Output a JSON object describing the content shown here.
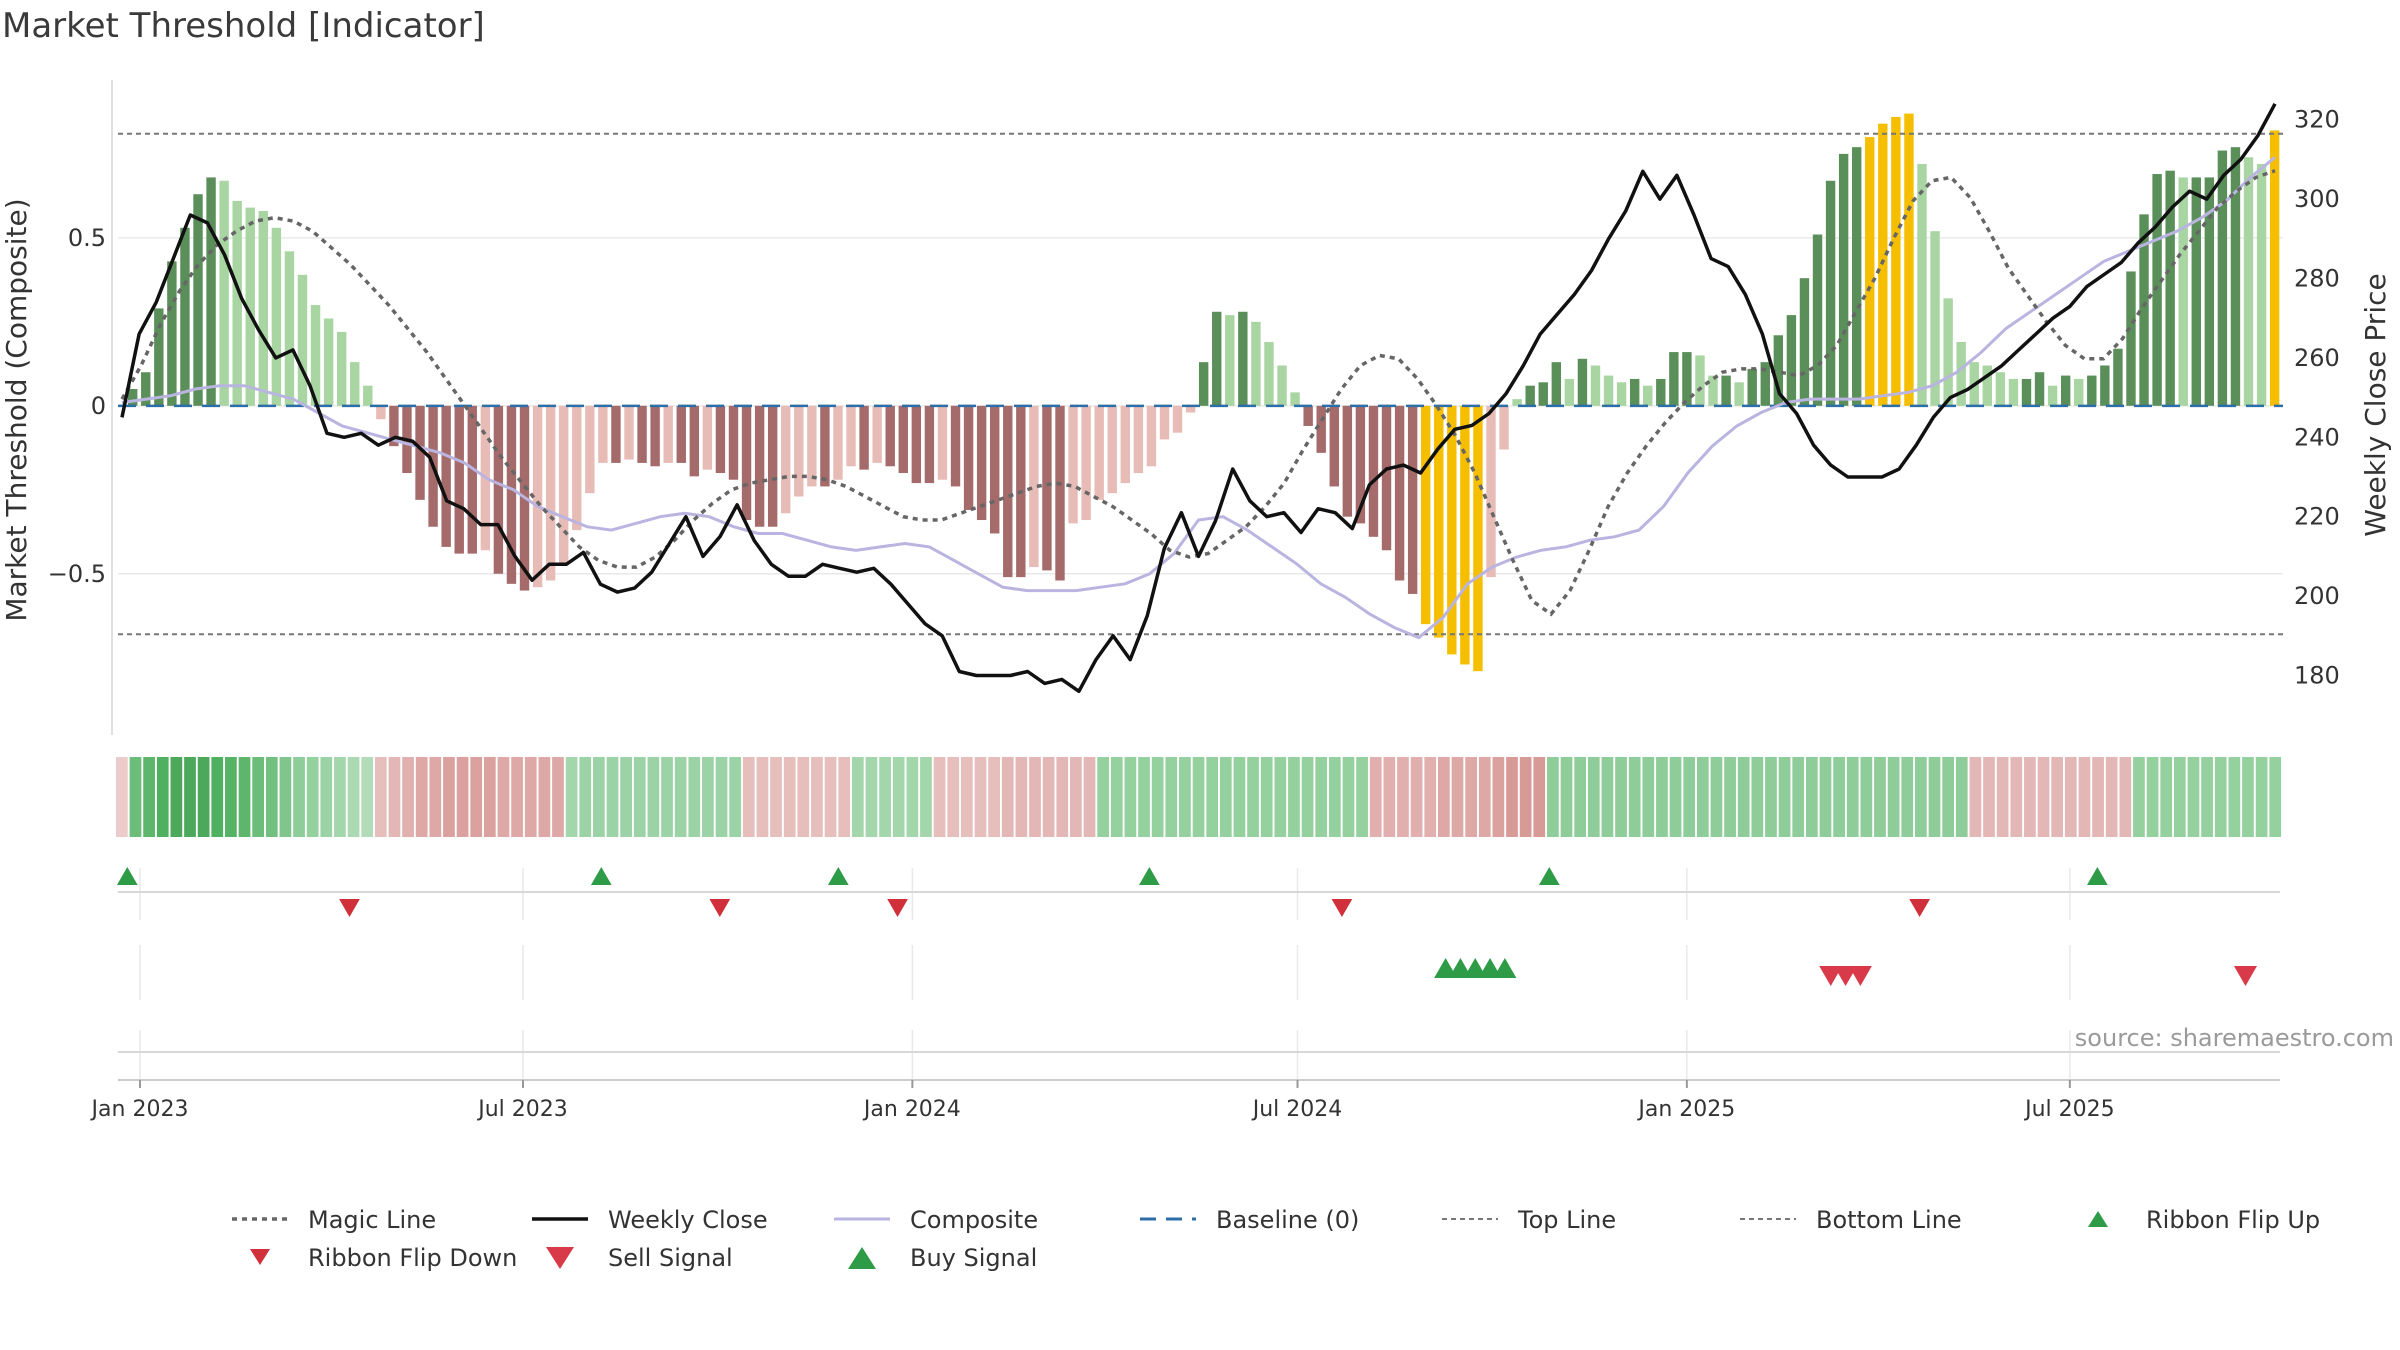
{
  "title": "Market Threshold [Indicator]",
  "source": "source: sharemaestro.com",
  "colors": {
    "bar_pos_strong": "#5a8f5a",
    "bar_pos_weak": "#a8d5a2",
    "bar_neg_strong": "#a56b6b",
    "bar_neg_weak": "#e8bcb6",
    "bar_extreme": "#f5bf00",
    "weekly_close": "#111111",
    "composite": "#b9b4e0",
    "magic_line": "#666666",
    "baseline": "#2c6fa8",
    "threshold_lines": "#777777",
    "buy": "#2e9b47",
    "sell": "#d93a49",
    "grid": "#e9e9e9"
  },
  "chart_data": {
    "type": "bar",
    "x_axis": {
      "start": "2023-01-01",
      "end": "2025-10-05",
      "ticks": [
        {
          "date": "2023-01-01",
          "label": "Jan 2023"
        },
        {
          "date": "2023-07-01",
          "label": "Jul 2023"
        },
        {
          "date": "2024-01-01",
          "label": "Jan 2024"
        },
        {
          "date": "2024-07-01",
          "label": "Jul 2024"
        },
        {
          "date": "2025-01-01",
          "label": "Jan 2025"
        },
        {
          "date": "2025-07-01",
          "label": "Jul 2025"
        }
      ]
    },
    "y_left": {
      "label": "Market Threshold (Composite)",
      "ticks": [
        {
          "value": 0.5,
          "label": "0.5"
        },
        {
          "value": 0,
          "label": "0"
        },
        {
          "value": -0.5,
          "label": "−0.5"
        }
      ],
      "range": [
        -0.98,
        0.97
      ]
    },
    "y_right": {
      "label": "Weekly Close Price",
      "ticks": [
        320,
        300,
        280,
        260,
        240,
        220,
        200,
        180
      ],
      "range": [
        165,
        330
      ]
    },
    "top_line": 0.81,
    "bottom_line": -0.68,
    "bars": [
      0.05,
      0.1,
      0.29,
      0.43,
      0.53,
      0.63,
      0.68,
      0.67,
      0.61,
      0.59,
      0.58,
      0.53,
      0.46,
      0.39,
      0.3,
      0.26,
      0.22,
      0.13,
      0.06,
      -0.04,
      -0.12,
      -0.2,
      -0.28,
      -0.36,
      -0.42,
      -0.44,
      -0.44,
      -0.43,
      -0.5,
      -0.53,
      -0.55,
      -0.54,
      -0.52,
      -0.47,
      -0.37,
      -0.26,
      -0.17,
      -0.17,
      -0.16,
      -0.17,
      -0.18,
      -0.17,
      -0.17,
      -0.21,
      -0.19,
      -0.2,
      -0.22,
      -0.34,
      -0.36,
      -0.36,
      -0.32,
      -0.27,
      -0.24,
      -0.24,
      -0.22,
      -0.18,
      -0.19,
      -0.17,
      -0.18,
      -0.2,
      -0.23,
      -0.23,
      -0.22,
      -0.24,
      -0.31,
      -0.34,
      -0.38,
      -0.51,
      -0.51,
      -0.48,
      -0.49,
      -0.52,
      -0.35,
      -0.34,
      -0.28,
      -0.26,
      -0.23,
      -0.2,
      -0.18,
      -0.1,
      -0.08,
      -0.02,
      0.13,
      0.28,
      0.27,
      0.28,
      0.25,
      0.19,
      0.12,
      0.04,
      -0.06,
      -0.14,
      -0.24,
      -0.33,
      -0.35,
      -0.39,
      -0.43,
      -0.52,
      -0.56,
      -0.65,
      -0.69,
      -0.74,
      -0.77,
      -0.79,
      -0.51,
      -0.13,
      0.02,
      0.06,
      0.07,
      0.13,
      0.08,
      0.14,
      0.12,
      0.09,
      0.07,
      0.08,
      0.06,
      0.08,
      0.16,
      0.16,
      0.15,
      0.09,
      0.09,
      0.07,
      0.11,
      0.13,
      0.21,
      0.27,
      0.38,
      0.51,
      0.67,
      0.75,
      0.77,
      0.8,
      0.84,
      0.86,
      0.87,
      0.72,
      0.52,
      0.32,
      0.19,
      0.13,
      0.12,
      0.1,
      0.08,
      0.08,
      0.1,
      0.06,
      0.09,
      0.08,
      0.09,
      0.12,
      0.17,
      0.4,
      0.57,
      0.69,
      0.7,
      0.68,
      0.68,
      0.68,
      0.76,
      0.77,
      0.74,
      0.72,
      0.82
    ],
    "magic_line": [
      0.02,
      0.12,
      0.24,
      0.34,
      0.42,
      0.48,
      0.52,
      0.55,
      0.56,
      0.55,
      0.52,
      0.47,
      0.42,
      0.36,
      0.3,
      0.23,
      0.16,
      0.08,
      0.0,
      -0.08,
      -0.16,
      -0.23,
      -0.3,
      -0.36,
      -0.42,
      -0.46,
      -0.48,
      -0.48,
      -0.45,
      -0.4,
      -0.34,
      -0.29,
      -0.25,
      -0.23,
      -0.22,
      -0.21,
      -0.21,
      -0.22,
      -0.24,
      -0.27,
      -0.3,
      -0.33,
      -0.34,
      -0.34,
      -0.32,
      -0.3,
      -0.28,
      -0.26,
      -0.24,
      -0.23,
      -0.24,
      -0.27,
      -0.3,
      -0.34,
      -0.38,
      -0.43,
      -0.45,
      -0.44,
      -0.4,
      -0.36,
      -0.3,
      -0.23,
      -0.13,
      -0.04,
      0.05,
      0.12,
      0.15,
      0.14,
      0.08,
      0.0,
      -0.09,
      -0.2,
      -0.33,
      -0.46,
      -0.58,
      -0.62,
      -0.55,
      -0.43,
      -0.3,
      -0.2,
      -0.12,
      -0.05,
      0.01,
      0.06,
      0.1,
      0.11,
      0.11,
      0.1,
      0.09,
      0.12,
      0.18,
      0.28,
      0.38,
      0.5,
      0.61,
      0.67,
      0.68,
      0.62,
      0.52,
      0.41,
      0.33,
      0.25,
      0.18,
      0.14,
      0.14,
      0.2,
      0.29,
      0.37,
      0.45,
      0.52,
      0.59,
      0.64,
      0.68,
      0.7
    ],
    "composite": [
      0.01,
      0.02,
      0.03,
      0.05,
      0.06,
      0.06,
      0.04,
      0.02,
      -0.02,
      -0.06,
      -0.08,
      -0.1,
      -0.12,
      -0.14,
      -0.17,
      -0.22,
      -0.25,
      -0.3,
      -0.33,
      -0.36,
      -0.37,
      -0.35,
      -0.33,
      -0.32,
      -0.33,
      -0.36,
      -0.38,
      -0.38,
      -0.4,
      -0.42,
      -0.43,
      -0.42,
      -0.41,
      -0.42,
      -0.46,
      -0.5,
      -0.54,
      -0.55,
      -0.55,
      -0.55,
      -0.54,
      -0.53,
      -0.5,
      -0.44,
      -0.34,
      -0.33,
      -0.37,
      -0.42,
      -0.47,
      -0.53,
      -0.57,
      -0.62,
      -0.66,
      -0.69,
      -0.63,
      -0.53,
      -0.48,
      -0.45,
      -0.43,
      -0.42,
      -0.4,
      -0.39,
      -0.37,
      -0.3,
      -0.2,
      -0.12,
      -0.06,
      -0.02,
      0.01,
      0.02,
      0.02,
      0.02,
      0.03,
      0.04,
      0.06,
      0.1,
      0.16,
      0.23,
      0.28,
      0.33,
      0.38,
      0.43,
      0.46,
      0.49,
      0.52,
      0.56,
      0.61,
      0.68,
      0.74
    ],
    "weekly_close": [
      245,
      266,
      274,
      285,
      296,
      294,
      286,
      275,
      267,
      260,
      262,
      253,
      241,
      240,
      241,
      238,
      240,
      239,
      235,
      224,
      222,
      218,
      218,
      210,
      204,
      208,
      208,
      211,
      203,
      201,
      202,
      206,
      213,
      220,
      210,
      215,
      223,
      214,
      208,
      205,
      205,
      208,
      207,
      206,
      207,
      203,
      198,
      193,
      190,
      181,
      180,
      180,
      180,
      181,
      178,
      179,
      176,
      184,
      190,
      184,
      195,
      212,
      221,
      210,
      219,
      232,
      224,
      220,
      221,
      216,
      222,
      221,
      217,
      228,
      232,
      233,
      231,
      237,
      242,
      243,
      246,
      251,
      258,
      266,
      271,
      276,
      282,
      290,
      297,
      307,
      300,
      306,
      296,
      285,
      283,
      276,
      266,
      251,
      246,
      238,
      233,
      230,
      230,
      230,
      232,
      238,
      245,
      250,
      252,
      255,
      258,
      262,
      266,
      270,
      273,
      278,
      281,
      284,
      289,
      293,
      298,
      302,
      300,
      306,
      310,
      316,
      324
    ],
    "ribbon": [
      -0.1,
      0.6,
      0.7,
      0.8,
      0.85,
      0.85,
      0.85,
      0.8,
      0.75,
      0.7,
      0.6,
      0.55,
      0.45,
      0.35,
      0.3,
      0.25,
      0.2,
      0.15,
      0.1,
      -0.2,
      -0.25,
      -0.3,
      -0.35,
      -0.35,
      -0.4,
      -0.4,
      -0.4,
      -0.4,
      -0.35,
      -0.35,
      -0.35,
      -0.35,
      -0.35,
      0.2,
      0.25,
      0.25,
      0.25,
      0.25,
      0.25,
      0.25,
      0.25,
      0.25,
      0.25,
      0.25,
      0.25,
      0.25,
      -0.2,
      -0.2,
      -0.2,
      -0.2,
      -0.2,
      -0.2,
      -0.2,
      -0.2,
      0.2,
      0.2,
      0.2,
      0.2,
      0.2,
      0.2,
      -0.2,
      -0.2,
      -0.2,
      -0.2,
      -0.2,
      -0.25,
      -0.25,
      -0.25,
      -0.25,
      -0.25,
      -0.25,
      -0.25,
      0.3,
      0.3,
      0.3,
      0.3,
      0.3,
      0.3,
      0.3,
      0.3,
      0.3,
      0.3,
      0.3,
      0.3,
      0.3,
      0.3,
      0.3,
      0.3,
      0.3,
      0.3,
      0.3,
      0.3,
      -0.3,
      -0.3,
      -0.3,
      -0.3,
      -0.3,
      -0.35,
      -0.35,
      -0.35,
      -0.35,
      -0.4,
      -0.45,
      -0.45,
      -0.45,
      0.35,
      0.35,
      0.35,
      0.35,
      0.35,
      0.35,
      0.35,
      0.35,
      0.35,
      0.35,
      0.35,
      0.35,
      0.35,
      0.35,
      0.35,
      0.35,
      0.35,
      0.35,
      0.35,
      0.35,
      0.35,
      0.35,
      0.35,
      0.35,
      0.35,
      0.35,
      0.35,
      0.35,
      0.35,
      0.35,
      0.35,
      -0.25,
      -0.25,
      -0.25,
      -0.25,
      -0.25,
      -0.25,
      -0.25,
      -0.25,
      -0.25,
      -0.25,
      -0.25,
      -0.25,
      0.3,
      0.3,
      0.3,
      0.3,
      0.3,
      0.3,
      0.3,
      0.3,
      0.3,
      0.3,
      0.3
    ],
    "ribbon_flip_up": [
      "2022-12-26",
      "2023-08-07",
      "2023-11-27",
      "2024-04-22",
      "2024-10-28",
      "2025-07-14"
    ],
    "ribbon_flip_down": [
      "2023-04-10",
      "2023-10-02",
      "2023-12-25",
      "2024-07-22",
      "2025-04-21"
    ],
    "buy_signals": [
      "2024-09-09",
      "2024-09-16",
      "2024-09-23",
      "2024-09-30",
      "2024-10-07"
    ],
    "sell_signals": [
      "2025-03-10",
      "2025-03-17",
      "2025-03-24",
      "2025-09-22"
    ],
    "legend": [
      {
        "key": "magic",
        "label": "Magic Line"
      },
      {
        "key": "close",
        "label": "Weekly Close"
      },
      {
        "key": "composite",
        "label": "Composite"
      },
      {
        "key": "baseline",
        "label": "Baseline (0)"
      },
      {
        "key": "top",
        "label": "Top Line"
      },
      {
        "key": "bottom",
        "label": "Bottom Line"
      },
      {
        "key": "flip-up",
        "label": "Ribbon Flip Up"
      },
      {
        "key": "flip-down",
        "label": "Ribbon Flip Down"
      },
      {
        "key": "sell",
        "label": "Sell Signal"
      },
      {
        "key": "buy",
        "label": "Buy Signal"
      }
    ]
  }
}
